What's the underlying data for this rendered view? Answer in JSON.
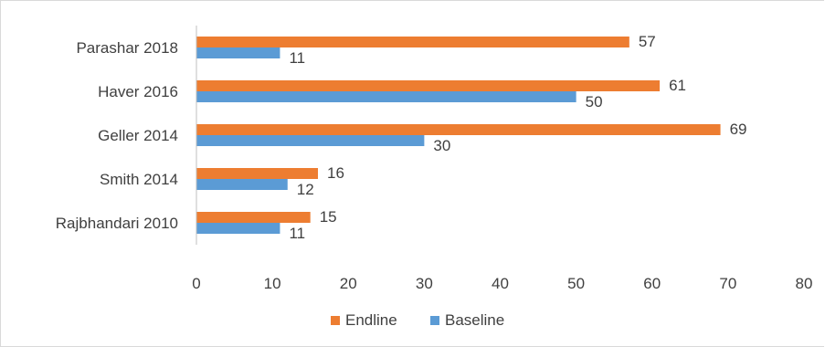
{
  "chart_data": {
    "type": "bar",
    "orientation": "horizontal",
    "categories": [
      "Parashar 2018",
      "Haver 2016",
      "Geller 2014",
      "Smith 2014",
      "Rajbhandari 2010"
    ],
    "series": [
      {
        "name": "Endline",
        "color": "#ED7D31",
        "values": [
          57,
          61,
          69,
          16,
          15
        ]
      },
      {
        "name": "Baseline",
        "color": "#5B9BD5",
        "values": [
          11,
          50,
          30,
          12,
          11
        ]
      }
    ],
    "xlim": [
      0,
      80
    ],
    "xticks": [
      0,
      10,
      20,
      30,
      40,
      50,
      60,
      70,
      80
    ],
    "grid": false,
    "legend": "bottom"
  }
}
